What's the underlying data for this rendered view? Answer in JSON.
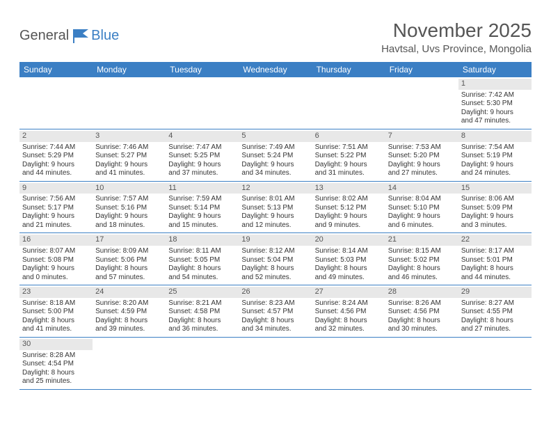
{
  "logo": {
    "text1": "General",
    "text2": "Blue"
  },
  "title": "November 2025",
  "location": "Havtsal, Uvs Province, Mongolia",
  "colors": {
    "header_bg": "#3b7fc4",
    "header_fg": "#ffffff",
    "daynum_bg": "#e8e8e8",
    "row_border": "#3b7fc4",
    "text": "#333333",
    "title": "#555555"
  },
  "daysOfWeek": [
    "Sunday",
    "Monday",
    "Tuesday",
    "Wednesday",
    "Thursday",
    "Friday",
    "Saturday"
  ],
  "weeks": [
    [
      null,
      null,
      null,
      null,
      null,
      null,
      {
        "n": "1",
        "sunrise": "7:42 AM",
        "sunset": "5:30 PM",
        "dh": "9",
        "dm": "47"
      }
    ],
    [
      {
        "n": "2",
        "sunrise": "7:44 AM",
        "sunset": "5:29 PM",
        "dh": "9",
        "dm": "44"
      },
      {
        "n": "3",
        "sunrise": "7:46 AM",
        "sunset": "5:27 PM",
        "dh": "9",
        "dm": "41"
      },
      {
        "n": "4",
        "sunrise": "7:47 AM",
        "sunset": "5:25 PM",
        "dh": "9",
        "dm": "37"
      },
      {
        "n": "5",
        "sunrise": "7:49 AM",
        "sunset": "5:24 PM",
        "dh": "9",
        "dm": "34"
      },
      {
        "n": "6",
        "sunrise": "7:51 AM",
        "sunset": "5:22 PM",
        "dh": "9",
        "dm": "31"
      },
      {
        "n": "7",
        "sunrise": "7:53 AM",
        "sunset": "5:20 PM",
        "dh": "9",
        "dm": "27"
      },
      {
        "n": "8",
        "sunrise": "7:54 AM",
        "sunset": "5:19 PM",
        "dh": "9",
        "dm": "24"
      }
    ],
    [
      {
        "n": "9",
        "sunrise": "7:56 AM",
        "sunset": "5:17 PM",
        "dh": "9",
        "dm": "21"
      },
      {
        "n": "10",
        "sunrise": "7:57 AM",
        "sunset": "5:16 PM",
        "dh": "9",
        "dm": "18"
      },
      {
        "n": "11",
        "sunrise": "7:59 AM",
        "sunset": "5:14 PM",
        "dh": "9",
        "dm": "15"
      },
      {
        "n": "12",
        "sunrise": "8:01 AM",
        "sunset": "5:13 PM",
        "dh": "9",
        "dm": "12"
      },
      {
        "n": "13",
        "sunrise": "8:02 AM",
        "sunset": "5:12 PM",
        "dh": "9",
        "dm": "9"
      },
      {
        "n": "14",
        "sunrise": "8:04 AM",
        "sunset": "5:10 PM",
        "dh": "9",
        "dm": "6"
      },
      {
        "n": "15",
        "sunrise": "8:06 AM",
        "sunset": "5:09 PM",
        "dh": "9",
        "dm": "3"
      }
    ],
    [
      {
        "n": "16",
        "sunrise": "8:07 AM",
        "sunset": "5:08 PM",
        "dh": "9",
        "dm": "0"
      },
      {
        "n": "17",
        "sunrise": "8:09 AM",
        "sunset": "5:06 PM",
        "dh": "8",
        "dm": "57"
      },
      {
        "n": "18",
        "sunrise": "8:11 AM",
        "sunset": "5:05 PM",
        "dh": "8",
        "dm": "54"
      },
      {
        "n": "19",
        "sunrise": "8:12 AM",
        "sunset": "5:04 PM",
        "dh": "8",
        "dm": "52"
      },
      {
        "n": "20",
        "sunrise": "8:14 AM",
        "sunset": "5:03 PM",
        "dh": "8",
        "dm": "49"
      },
      {
        "n": "21",
        "sunrise": "8:15 AM",
        "sunset": "5:02 PM",
        "dh": "8",
        "dm": "46"
      },
      {
        "n": "22",
        "sunrise": "8:17 AM",
        "sunset": "5:01 PM",
        "dh": "8",
        "dm": "44"
      }
    ],
    [
      {
        "n": "23",
        "sunrise": "8:18 AM",
        "sunset": "5:00 PM",
        "dh": "8",
        "dm": "41"
      },
      {
        "n": "24",
        "sunrise": "8:20 AM",
        "sunset": "4:59 PM",
        "dh": "8",
        "dm": "39"
      },
      {
        "n": "25",
        "sunrise": "8:21 AM",
        "sunset": "4:58 PM",
        "dh": "8",
        "dm": "36"
      },
      {
        "n": "26",
        "sunrise": "8:23 AM",
        "sunset": "4:57 PM",
        "dh": "8",
        "dm": "34"
      },
      {
        "n": "27",
        "sunrise": "8:24 AM",
        "sunset": "4:56 PM",
        "dh": "8",
        "dm": "32"
      },
      {
        "n": "28",
        "sunrise": "8:26 AM",
        "sunset": "4:56 PM",
        "dh": "8",
        "dm": "30"
      },
      {
        "n": "29",
        "sunrise": "8:27 AM",
        "sunset": "4:55 PM",
        "dh": "8",
        "dm": "27"
      }
    ],
    [
      {
        "n": "30",
        "sunrise": "8:28 AM",
        "sunset": "4:54 PM",
        "dh": "8",
        "dm": "25"
      },
      null,
      null,
      null,
      null,
      null,
      null
    ]
  ]
}
